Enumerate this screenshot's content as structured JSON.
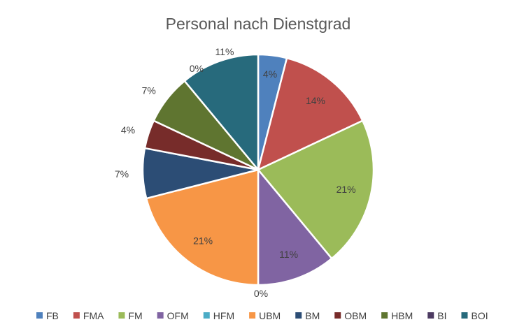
{
  "chart_data": {
    "type": "pie",
    "title": "Personal nach Dienstgrad",
    "legend_position": "bottom",
    "categories": [
      "FB",
      "FMA",
      "FM",
      "OFM",
      "HFM",
      "UBM",
      "BM",
      "OBM",
      "HBM",
      "BI",
      "BOI"
    ],
    "values": [
      4,
      14,
      21,
      11,
      0,
      21,
      7,
      4,
      7,
      0,
      11
    ],
    "data_labels": [
      "4%",
      "14%",
      "21%",
      "11%",
      "0%",
      "21%",
      "7%",
      "4%",
      "7%",
      "0%",
      "11%"
    ],
    "colors": [
      "#4F81BD",
      "#C0504D",
      "#9BBB59",
      "#8064A2",
      "#4BACC6",
      "#F79646",
      "#2C4D75",
      "#772C2A",
      "#5F7530",
      "#4D3B62",
      "#276A7C"
    ]
  }
}
